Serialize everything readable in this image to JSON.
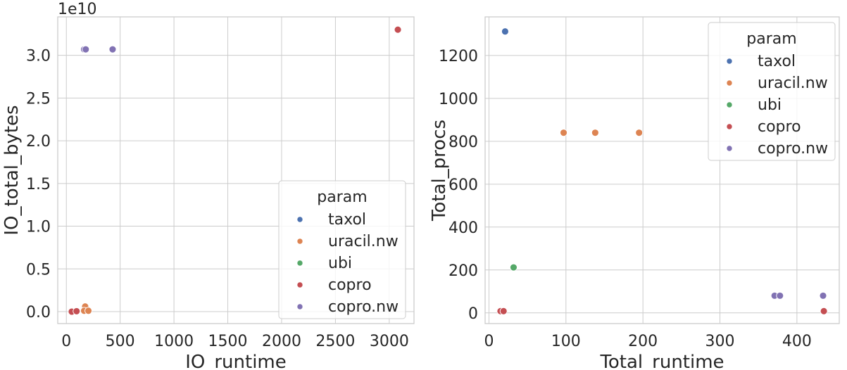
{
  "colors": {
    "taxol": "#4c72b0",
    "uracil.nw": "#dd8452",
    "ubi": "#55a868",
    "copro": "#c44e52",
    "copro.nw": "#8172b3"
  },
  "chart_data": [
    {
      "type": "scatter",
      "xlabel": "IO_runtime",
      "ylabel": "IO_total_bytes",
      "offset_label": "1e10",
      "xlim": [
        -80,
        3230
      ],
      "ylim": [
        -0.14,
        3.45
      ],
      "xticks": [
        0,
        500,
        1000,
        1500,
        2000,
        2500,
        3000
      ],
      "xtick_labels": [
        "0",
        "500",
        "1000",
        "1500",
        "2000",
        "2500",
        "3000"
      ],
      "yticks": [
        0.0,
        0.5,
        1.0,
        1.5,
        2.0,
        2.5,
        3.0
      ],
      "ytick_labels": [
        "0.0",
        "0.5",
        "1.0",
        "1.5",
        "2.0",
        "2.5",
        "3.0"
      ],
      "grid": true,
      "legend_title": "param",
      "legend_position": "lower-right",
      "series": [
        {
          "name": "taxol",
          "points": [
            [
              175,
              3.07
            ]
          ]
        },
        {
          "name": "uracil.nw",
          "points": [
            [
              175,
              0.06
            ],
            [
              165,
              0.01
            ],
            [
              205,
              0.01
            ]
          ]
        },
        {
          "name": "ubi",
          "points": []
        },
        {
          "name": "copro",
          "points": [
            [
              50,
              0.0
            ],
            [
              95,
              0.005
            ],
            [
              3080,
              3.3
            ]
          ]
        },
        {
          "name": "copro.nw",
          "points": [
            [
              165,
              3.07
            ],
            [
              180,
              3.07
            ],
            [
              430,
              3.07
            ]
          ]
        }
      ]
    },
    {
      "type": "scatter",
      "xlabel": "Total_runtime",
      "ylabel": "Total_procs",
      "xlim": [
        -5,
        455
      ],
      "ylim": [
        -50,
        1380
      ],
      "xticks": [
        0,
        100,
        200,
        300,
        400
      ],
      "xtick_labels": [
        "0",
        "100",
        "200",
        "300",
        "400"
      ],
      "yticks": [
        0,
        200,
        400,
        600,
        800,
        1000,
        1200
      ],
      "ytick_labels": [
        "0",
        "200",
        "400",
        "600",
        "800",
        "1000",
        "1200"
      ],
      "grid": true,
      "legend_title": "param",
      "legend_position": "top-right",
      "series": [
        {
          "name": "taxol",
          "points": [
            [
              21,
              1312
            ]
          ]
        },
        {
          "name": "uracil.nw",
          "points": [
            [
              97,
              840
            ],
            [
              138,
              840
            ],
            [
              195,
              840
            ]
          ]
        },
        {
          "name": "ubi",
          "points": [
            [
              32,
              212
            ]
          ]
        },
        {
          "name": "copro",
          "points": [
            [
              15,
              8
            ],
            [
              19,
              8
            ],
            [
              435,
              8
            ]
          ]
        },
        {
          "name": "copro.nw",
          "points": [
            [
              371,
              80
            ],
            [
              378,
              80
            ],
            [
              434,
              80
            ]
          ]
        }
      ]
    }
  ]
}
